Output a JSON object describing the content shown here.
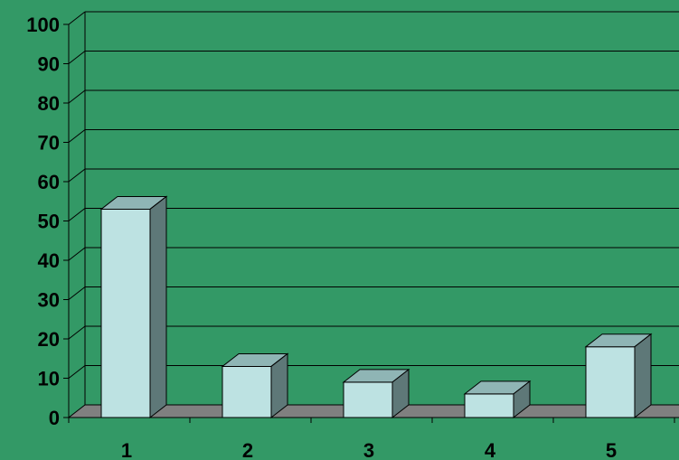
{
  "chart_data": {
    "type": "bar",
    "style": "3d",
    "categories": [
      "1",
      "2",
      "3",
      "4",
      "5"
    ],
    "values": [
      53,
      13,
      9,
      6,
      18
    ],
    "ylim": [
      0,
      100
    ],
    "yticks": [
      "0",
      "10",
      "20",
      "30",
      "40",
      "50",
      "60",
      "70",
      "80",
      "90",
      "100"
    ],
    "grid": true,
    "legend": "none",
    "title": "",
    "xlabel": "",
    "ylabel": ""
  },
  "colors": {
    "background": "#339966",
    "bar_front": "#bde2e2",
    "bar_top": "#8fb5b5",
    "bar_side": "#5e7878",
    "floor": "#808080",
    "gridline": "#000000"
  }
}
